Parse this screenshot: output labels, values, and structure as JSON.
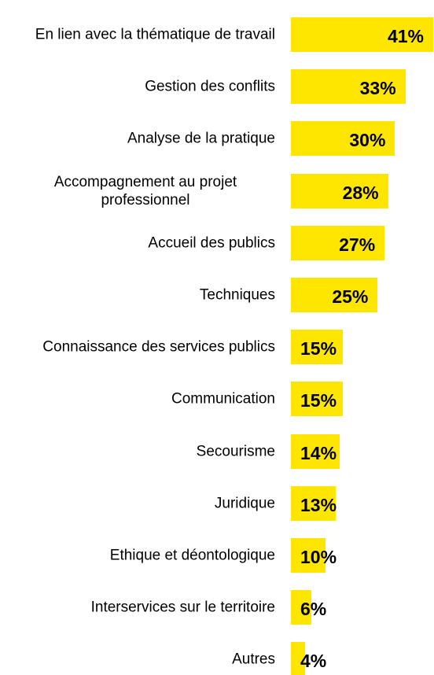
{
  "chart_data": {
    "type": "bar",
    "orientation": "horizontal",
    "color": "#ffe600",
    "categories": [
      "En lien avec la thématique de travail",
      "Gestion des conflits",
      "Analyse de la pratique",
      "Accompagnement au projet professionnel",
      "Accueil des publics",
      "Techniques",
      "Connaissance des services publics",
      "Communication",
      "Secourisme",
      "Juridique",
      "Ethique et déontologique",
      "Interservices sur le territoire",
      "Autres"
    ],
    "values": [
      41,
      33,
      30,
      28,
      27,
      25,
      15,
      15,
      14,
      13,
      10,
      6,
      4
    ],
    "value_labels": [
      "41%",
      "33%",
      "30%",
      "28%",
      "27%",
      "25%",
      "15%",
      "15%",
      "14%",
      "13%",
      "10%",
      "6%",
      "4%"
    ]
  }
}
